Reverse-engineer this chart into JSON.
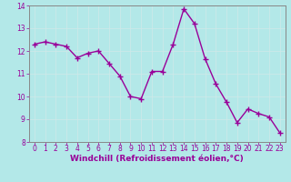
{
  "x": [
    0,
    1,
    2,
    3,
    4,
    5,
    6,
    7,
    8,
    9,
    10,
    11,
    12,
    13,
    14,
    15,
    16,
    17,
    18,
    19,
    20,
    21,
    22,
    23
  ],
  "y": [
    12.3,
    12.4,
    12.3,
    12.2,
    11.7,
    11.9,
    12.0,
    11.45,
    10.9,
    10.0,
    9.9,
    11.1,
    11.1,
    12.3,
    13.85,
    13.2,
    11.65,
    10.55,
    9.75,
    8.85,
    9.45,
    9.25,
    9.1,
    8.4
  ],
  "line_color": "#990099",
  "marker": "+",
  "marker_size": 4,
  "marker_linewidth": 1.0,
  "bg_color": "#b3e8e8",
  "grid_color": "#d0e8e8",
  "xlabel": "Windchill (Refroidissement éolien,°C)",
  "xlabel_color": "#990099",
  "tick_color": "#990099",
  "spine_color": "#888888",
  "ylim": [
    8,
    14
  ],
  "xlim_min": -0.5,
  "xlim_max": 23.5,
  "yticks": [
    8,
    9,
    10,
    11,
    12,
    13,
    14
  ],
  "xticks": [
    0,
    1,
    2,
    3,
    4,
    5,
    6,
    7,
    8,
    9,
    10,
    11,
    12,
    13,
    14,
    15,
    16,
    17,
    18,
    19,
    20,
    21,
    22,
    23
  ],
  "tick_fontsize": 5.5,
  "xlabel_fontsize": 6.5,
  "linewidth": 1.0
}
